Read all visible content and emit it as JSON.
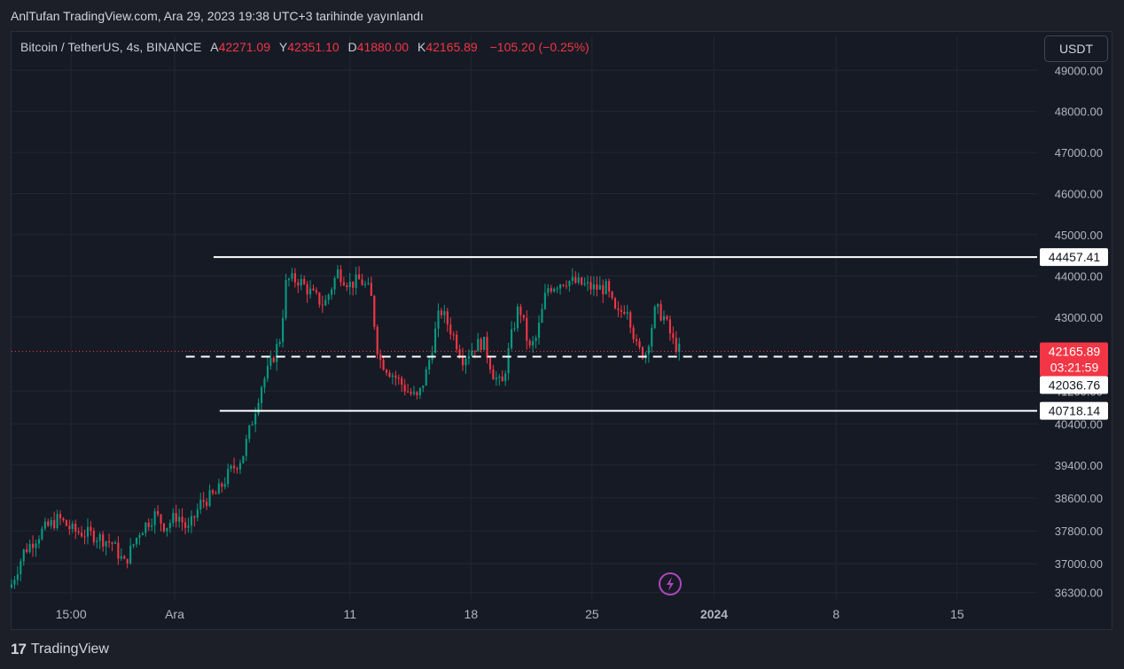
{
  "publish_note": "AnlTufan TradingView.com, Ara 29, 2023 19:38 UTC+3 tarihinde yayınlandı",
  "legend": {
    "symbol": "Bitcoin / TetherUS, 4s, BINANCE",
    "open_key": "A",
    "open": "42271.09",
    "high_key": "Y",
    "high": "42351.10",
    "low_key": "D",
    "low": "41880.00",
    "close_key": "K",
    "close": "42165.89",
    "change": "−105.20 (−0.25%)"
  },
  "currency_button": "USDT",
  "footer": {
    "brand": "TradingView",
    "logo_mark": "17"
  },
  "colors": {
    "up": "#089981",
    "down": "#f23645",
    "line": "#ffffff",
    "grid": "#232733",
    "bg": "#161a25"
  },
  "icons": {
    "alert": "lightning-icon"
  },
  "chart_data": {
    "type": "candlestick",
    "ylim": [
      36100,
      49200
    ],
    "y_ticks": [
      "36300.00",
      "37000.00",
      "37800.00",
      "38600.00",
      "39400.00",
      "40400.00",
      "41200.00",
      "43000.00",
      "44000.00",
      "45000.00",
      "46000.00",
      "47000.00",
      "48000.00",
      "49000.00"
    ],
    "x_ticks": [
      {
        "label": "15:00",
        "pos": 0.058
      },
      {
        "label": "Ara",
        "pos": 0.159
      },
      {
        "label": "11",
        "pos": 0.33
      },
      {
        "label": "18",
        "pos": 0.448
      },
      {
        "label": "25",
        "pos": 0.566
      },
      {
        "label": "2024",
        "pos": 0.685
      },
      {
        "label": "8",
        "pos": 0.804
      },
      {
        "label": "15",
        "pos": 0.922
      }
    ],
    "key_points": [
      [
        0.0,
        36500
      ],
      [
        0.012,
        37300
      ],
      [
        0.03,
        37800
      ],
      [
        0.046,
        38100
      ],
      [
        0.06,
        37800
      ],
      [
        0.08,
        37700
      ],
      [
        0.098,
        37500
      ],
      [
        0.11,
        37000
      ],
      [
        0.125,
        37800
      ],
      [
        0.14,
        38200
      ],
      [
        0.15,
        37900
      ],
      [
        0.162,
        38200
      ],
      [
        0.172,
        37800
      ],
      [
        0.185,
        38500
      ],
      [
        0.2,
        38700
      ],
      [
        0.212,
        39200
      ],
      [
        0.225,
        39600
      ],
      [
        0.235,
        40500
      ],
      [
        0.243,
        41300
      ],
      [
        0.252,
        41800
      ],
      [
        0.262,
        42500
      ],
      [
        0.268,
        43900
      ],
      [
        0.28,
        43900
      ],
      [
        0.295,
        43500
      ],
      [
        0.305,
        43300
      ],
      [
        0.318,
        44100
      ],
      [
        0.33,
        43800
      ],
      [
        0.34,
        43900
      ],
      [
        0.35,
        43600
      ],
      [
        0.358,
        42000
      ],
      [
        0.368,
        41700
      ],
      [
        0.376,
        41500
      ],
      [
        0.386,
        41200
      ],
      [
        0.396,
        41000
      ],
      [
        0.405,
        41700
      ],
      [
        0.418,
        43200
      ],
      [
        0.43,
        42600
      ],
      [
        0.44,
        42000
      ],
      [
        0.452,
        42300
      ],
      [
        0.46,
        42400
      ],
      [
        0.47,
        41600
      ],
      [
        0.478,
        41300
      ],
      [
        0.488,
        42600
      ],
      [
        0.495,
        43300
      ],
      [
        0.505,
        42200
      ],
      [
        0.512,
        42500
      ],
      [
        0.522,
        43700
      ],
      [
        0.54,
        43900
      ],
      [
        0.555,
        43800
      ],
      [
        0.568,
        43700
      ],
      [
        0.58,
        43700
      ],
      [
        0.59,
        43000
      ],
      [
        0.6,
        43300
      ],
      [
        0.61,
        42200
      ],
      [
        0.618,
        42100
      ],
      [
        0.628,
        43200
      ],
      [
        0.636,
        43000
      ],
      [
        0.645,
        42400
      ],
      [
        0.651,
        42200
      ]
    ],
    "levels": [
      {
        "value": 44457.41,
        "label": "44457.41",
        "style": "solid",
        "from": 0.197
      },
      {
        "value": 42036.76,
        "label": "42036.76",
        "style": "dashed",
        "from": 0.17
      },
      {
        "value": 40718.14,
        "label": "40718.14",
        "style": "solid",
        "from": 0.203
      }
    ],
    "last_price": {
      "value": 42165.89,
      "label": "42165.89",
      "countdown": "03:21:59"
    }
  }
}
